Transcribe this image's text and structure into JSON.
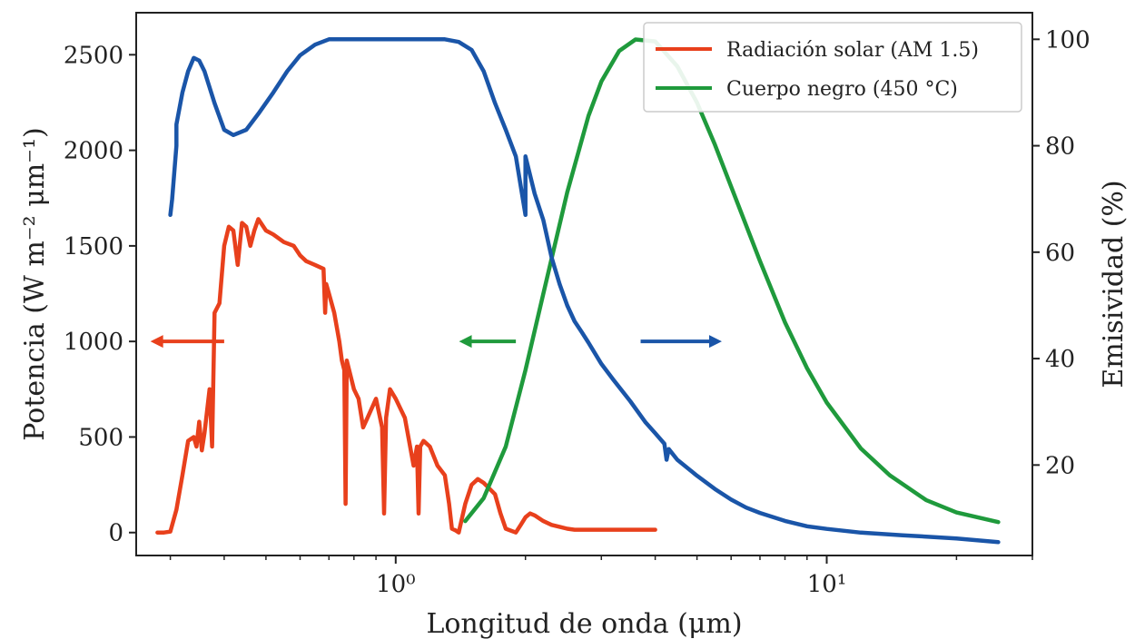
{
  "chart_data": {
    "type": "line",
    "x_scale": "log",
    "xlim": [
      0.25,
      30
    ],
    "ylim_left": [
      -120,
      2720
    ],
    "ylim_right": [
      3,
      105
    ],
    "xlabel": "Longitud de onda (μm)",
    "ylabel_left": "Potencia (W m⁻² μm⁻¹)",
    "ylabel_right": "Emisividad (%)",
    "x_ticks": [
      {
        "value": 1,
        "label": "10⁰"
      },
      {
        "value": 10,
        "label": "10¹"
      }
    ],
    "y_ticks_left": [
      0,
      500,
      1000,
      1500,
      2000,
      2500
    ],
    "y_ticks_right": [
      20,
      40,
      60,
      80,
      100
    ],
    "legend": {
      "placement": "top-right",
      "entries": [
        {
          "label": "Radiación solar (AM 1.5)",
          "color": "#e8401c"
        },
        {
          "label": "Cuerpo negro (450 °C)",
          "color": "#1f9a3c"
        }
      ]
    },
    "annotations": [
      {
        "type": "arrow",
        "direction": "left",
        "color": "#e8401c",
        "x_from": 0.4,
        "x_to": 0.275,
        "y_left": 1000
      },
      {
        "type": "arrow",
        "direction": "left",
        "color": "#1f9a3c",
        "x_from": 1.9,
        "x_to": 1.43,
        "y_left": 1000
      },
      {
        "type": "arrow",
        "direction": "right",
        "color": "#1a55a8",
        "x_from": 3.7,
        "x_to": 5.6,
        "y_left": 1000
      }
    ],
    "series": [
      {
        "name": "Radiación solar (AM 1.5)",
        "axis": "left",
        "color": "#e8401c",
        "x": [
          0.28,
          0.29,
          0.3,
          0.31,
          0.32,
          0.33,
          0.34,
          0.345,
          0.35,
          0.355,
          0.36,
          0.37,
          0.375,
          0.38,
          0.39,
          0.4,
          0.41,
          0.42,
          0.43,
          0.44,
          0.45,
          0.46,
          0.47,
          0.48,
          0.5,
          0.52,
          0.55,
          0.58,
          0.6,
          0.62,
          0.65,
          0.68,
          0.686,
          0.69,
          0.7,
          0.72,
          0.74,
          0.75,
          0.76,
          0.765,
          0.77,
          0.8,
          0.82,
          0.84,
          0.86,
          0.9,
          0.93,
          0.94,
          0.95,
          0.97,
          1.0,
          1.05,
          1.1,
          1.12,
          1.13,
          1.14,
          1.16,
          1.2,
          1.25,
          1.3,
          1.33,
          1.35,
          1.38,
          1.4,
          1.45,
          1.5,
          1.55,
          1.6,
          1.65,
          1.7,
          1.75,
          1.8,
          1.85,
          1.9,
          1.95,
          2.0,
          2.05,
          2.1,
          2.2,
          2.3,
          2.4,
          2.5,
          2.6,
          2.8,
          3.0,
          3.3,
          3.6,
          4.0
        ],
        "values": [
          0,
          0,
          5,
          120,
          300,
          480,
          500,
          450,
          580,
          430,
          520,
          750,
          450,
          1150,
          1200,
          1500,
          1600,
          1580,
          1400,
          1620,
          1600,
          1500,
          1580,
          1640,
          1580,
          1560,
          1520,
          1500,
          1450,
          1420,
          1400,
          1380,
          1150,
          1300,
          1250,
          1150,
          1000,
          900,
          850,
          150,
          900,
          750,
          700,
          550,
          600,
          700,
          550,
          100,
          600,
          750,
          700,
          600,
          350,
          450,
          100,
          450,
          480,
          450,
          350,
          300,
          150,
          20,
          10,
          0,
          150,
          250,
          280,
          260,
          230,
          200,
          100,
          20,
          10,
          0,
          40,
          80,
          100,
          90,
          60,
          40,
          30,
          20,
          15,
          15,
          15,
          15,
          15,
          15
        ]
      },
      {
        "name": "Cuerpo negro (450 °C)",
        "axis": "left",
        "color": "#1f9a3c",
        "x": [
          1.45,
          1.6,
          1.8,
          2.0,
          2.2,
          2.5,
          2.8,
          3.0,
          3.3,
          3.6,
          4.0,
          4.5,
          5.0,
          5.5,
          6.0,
          7.0,
          8.0,
          9.0,
          10.0,
          12.0,
          14.0,
          17.0,
          20.0,
          25.0
        ],
        "values": [
          60,
          180,
          450,
          850,
          1250,
          1780,
          2180,
          2360,
          2520,
          2580,
          2570,
          2440,
          2250,
          2030,
          1810,
          1420,
          1100,
          860,
          680,
          440,
          300,
          170,
          105,
          55
        ]
      },
      {
        "name": "",
        "axis": "right",
        "color": "#1a55a8",
        "x": [
          0.3,
          0.303,
          0.31,
          0.31,
          0.32,
          0.33,
          0.34,
          0.35,
          0.36,
          0.38,
          0.4,
          0.42,
          0.45,
          0.48,
          0.52,
          0.56,
          0.6,
          0.65,
          0.7,
          0.75,
          0.8,
          0.85,
          0.9,
          1.0,
          1.1,
          1.2,
          1.3,
          1.4,
          1.5,
          1.6,
          1.7,
          1.8,
          1.9,
          2.0,
          2.0,
          2.1,
          2.2,
          2.3,
          2.4,
          2.5,
          2.6,
          2.7,
          2.8,
          3.0,
          3.2,
          3.5,
          3.8,
          4.0,
          4.2,
          4.25,
          4.3,
          4.5,
          5.0,
          5.5,
          6.0,
          6.5,
          7.0,
          8.0,
          9.0,
          10.0,
          12.0,
          15.0,
          20.0,
          25.0
        ],
        "values": [
          67,
          70,
          80,
          84,
          90,
          94,
          96.5,
          96,
          94,
          88,
          83,
          82,
          83,
          86,
          90,
          94,
          97,
          99,
          100,
          100,
          100,
          100,
          100,
          100,
          100,
          100,
          100,
          99.5,
          98,
          94,
          88,
          83,
          78,
          67,
          78,
          71,
          66,
          59,
          54,
          50,
          47,
          45,
          43,
          39,
          36,
          32,
          28,
          26,
          24,
          21,
          23,
          21,
          18,
          15.5,
          13.5,
          12,
          11,
          9.5,
          8.5,
          8,
          7.3,
          6.8,
          6.2,
          5.5
        ]
      }
    ]
  }
}
